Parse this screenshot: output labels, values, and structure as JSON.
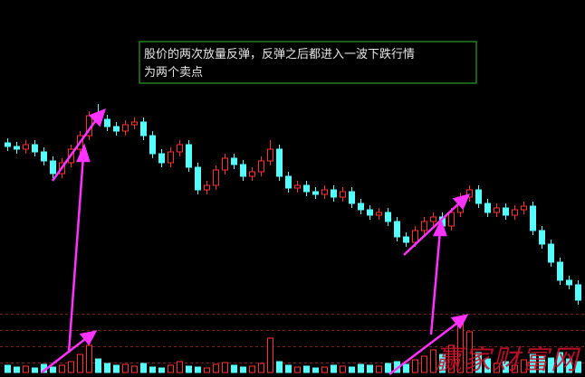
{
  "chart_data": {
    "type": "candlestick",
    "annotation": [
      "股价的两次放量反弹，反弹之后都进入一波下跌行情",
      "为两个卖点"
    ],
    "watermark": "赢家财富网",
    "up_color": "#ff3232",
    "down_color": "#54ffff",
    "ylim": [
      0,
      240
    ],
    "volume_ylim": [
      0,
      70
    ],
    "open": [
      182,
      178,
      175,
      180,
      172,
      162,
      148,
      160,
      175,
      190,
      212,
      208,
      200,
      195,
      202,
      205,
      190,
      170,
      160,
      172,
      180,
      155,
      130,
      135,
      152,
      165,
      158,
      145,
      150,
      162,
      175,
      145,
      132,
      135,
      128,
      125,
      130,
      122,
      128,
      115,
      108,
      102,
      105,
      95,
      78,
      72,
      85,
      95,
      100,
      90,
      105,
      122,
      130,
      115,
      105,
      110,
      102,
      108,
      112,
      85,
      70,
      50,
      30,
      25
    ],
    "high": [
      187,
      183,
      185,
      185,
      177,
      167,
      165,
      180,
      195,
      217,
      225,
      213,
      205,
      207,
      210,
      210,
      195,
      175,
      177,
      185,
      185,
      160,
      140,
      157,
      170,
      170,
      163,
      155,
      167,
      185,
      180,
      150,
      140,
      140,
      133,
      135,
      135,
      133,
      133,
      120,
      113,
      110,
      110,
      100,
      83,
      90,
      100,
      105,
      105,
      110,
      127,
      135,
      135,
      120,
      115,
      115,
      113,
      117,
      117,
      90,
      75,
      55,
      35,
      30
    ],
    "low": [
      173,
      170,
      170,
      167,
      157,
      143,
      143,
      155,
      170,
      185,
      203,
      195,
      190,
      190,
      197,
      185,
      165,
      155,
      155,
      167,
      150,
      125,
      125,
      130,
      147,
      153,
      140,
      140,
      145,
      157,
      140,
      127,
      127,
      123,
      120,
      120,
      117,
      117,
      110,
      103,
      97,
      97,
      90,
      73,
      67,
      67,
      80,
      90,
      85,
      85,
      100,
      117,
      110,
      100,
      100,
      97,
      97,
      103,
      80,
      65,
      45,
      25,
      20,
      3
    ],
    "close": [
      178,
      175,
      180,
      172,
      162,
      148,
      160,
      175,
      190,
      212,
      208,
      200,
      195,
      202,
      205,
      190,
      170,
      160,
      172,
      180,
      155,
      130,
      135,
      152,
      165,
      158,
      145,
      150,
      162,
      175,
      145,
      132,
      135,
      128,
      125,
      130,
      122,
      128,
      115,
      108,
      102,
      105,
      95,
      78,
      72,
      85,
      95,
      100,
      90,
      105,
      122,
      130,
      115,
      105,
      110,
      102,
      108,
      112,
      85,
      70,
      50,
      30,
      25,
      8
    ],
    "volume": [
      8,
      6,
      7,
      5,
      9,
      6,
      8,
      12,
      20,
      30,
      15,
      10,
      8,
      9,
      7,
      10,
      6,
      5,
      8,
      12,
      7,
      6,
      5,
      9,
      11,
      8,
      6,
      7,
      10,
      38,
      12,
      8,
      6,
      7,
      5,
      6,
      8,
      7,
      6,
      9,
      8,
      7,
      10,
      12,
      9,
      14,
      18,
      25,
      20,
      30,
      60,
      45,
      22,
      15,
      10,
      12,
      8,
      14,
      20,
      18,
      16,
      22,
      15,
      12
    ]
  }
}
